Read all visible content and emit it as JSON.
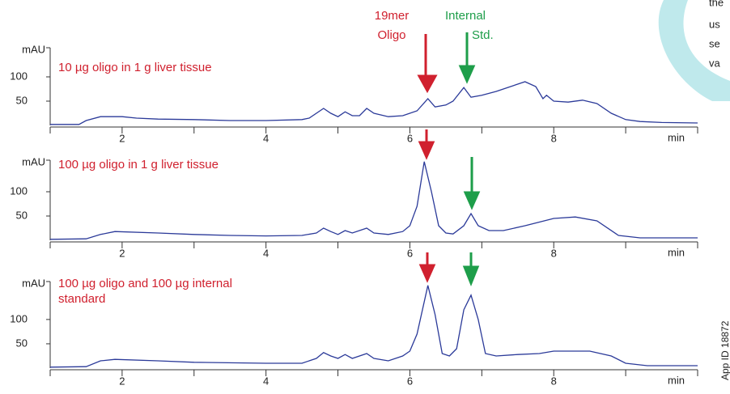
{
  "chart_data": [
    {
      "type": "line",
      "annotation": [
        "10 µg oligo in 1 g liver tissue"
      ],
      "ylabel": "mAU",
      "xlabel": "min",
      "color": "#2b3a99",
      "x": [
        1.0,
        1.4,
        1.5,
        1.7,
        2.0,
        2.2,
        2.5,
        3.0,
        3.5,
        4.0,
        4.5,
        4.6,
        4.8,
        4.9,
        5.0,
        5.1,
        5.2,
        5.3,
        5.4,
        5.5,
        5.7,
        5.9,
        6.0,
        6.1,
        6.25,
        6.35,
        6.5,
        6.6,
        6.75,
        6.85,
        7.0,
        7.2,
        7.4,
        7.6,
        7.75,
        7.85,
        7.9,
        8.0,
        8.2,
        8.4,
        8.6,
        8.8,
        9.0,
        9.2,
        9.5,
        10.0
      ],
      "values": [
        2,
        2,
        10,
        18,
        18,
        15,
        13,
        12,
        10,
        10,
        12,
        15,
        35,
        25,
        18,
        28,
        20,
        20,
        35,
        25,
        18,
        20,
        25,
        30,
        55,
        38,
        42,
        50,
        78,
        58,
        62,
        70,
        80,
        90,
        80,
        55,
        62,
        50,
        48,
        52,
        45,
        25,
        12,
        8,
        6,
        5
      ],
      "xlim": [
        1,
        10
      ],
      "xticks": [
        2,
        4,
        6,
        8
      ],
      "xminorticks": [
        3,
        5,
        7,
        9
      ],
      "ylim": [
        0,
        160
      ],
      "yticks": [
        50,
        100
      ]
    },
    {
      "type": "line",
      "annotation": [
        "100 µg oligo in 1 g liver tissue"
      ],
      "ylabel": "mAU",
      "xlabel": "min",
      "color": "#2b3a99",
      "x": [
        1.0,
        1.5,
        1.7,
        1.9,
        2.5,
        3.0,
        3.5,
        4.0,
        4.5,
        4.7,
        4.8,
        4.9,
        5.0,
        5.1,
        5.2,
        5.4,
        5.5,
        5.7,
        5.9,
        6.0,
        6.1,
        6.2,
        6.3,
        6.4,
        6.5,
        6.6,
        6.75,
        6.85,
        6.95,
        7.1,
        7.3,
        7.6,
        8.0,
        8.3,
        8.6,
        8.9,
        9.2,
        10.0
      ],
      "values": [
        2,
        3,
        12,
        18,
        15,
        12,
        10,
        9,
        10,
        15,
        25,
        18,
        12,
        20,
        15,
        25,
        15,
        12,
        18,
        30,
        70,
        162,
        100,
        30,
        15,
        13,
        30,
        55,
        30,
        20,
        20,
        30,
        45,
        48,
        40,
        10,
        5,
        5
      ],
      "xlim": [
        1,
        10
      ],
      "xticks": [
        2,
        4,
        6,
        8
      ],
      "xminorticks": [
        3,
        5,
        7,
        9
      ],
      "ylim": [
        0,
        165
      ],
      "yticks": [
        50,
        100
      ]
    },
    {
      "type": "line",
      "annotation": [
        "100 µg oligo and 100 µg internal",
        "standard"
      ],
      "ylabel": "mAU",
      "xlabel": "min",
      "color": "#2b3a99",
      "x": [
        1.0,
        1.5,
        1.7,
        1.9,
        2.5,
        3.0,
        4.0,
        4.5,
        4.7,
        4.8,
        4.9,
        5.0,
        5.1,
        5.2,
        5.4,
        5.5,
        5.7,
        5.9,
        6.0,
        6.1,
        6.25,
        6.35,
        6.45,
        6.55,
        6.65,
        6.75,
        6.85,
        6.95,
        7.05,
        7.2,
        7.5,
        7.8,
        8.0,
        8.5,
        8.8,
        9.0,
        9.3,
        10.0
      ],
      "values": [
        2,
        3,
        15,
        18,
        15,
        12,
        10,
        10,
        20,
        32,
        25,
        20,
        28,
        20,
        30,
        20,
        15,
        25,
        35,
        70,
        170,
        110,
        30,
        25,
        40,
        120,
        150,
        100,
        30,
        25,
        28,
        30,
        35,
        35,
        25,
        10,
        5,
        5
      ],
      "xlim": [
        1,
        10
      ],
      "xticks": [
        2,
        4,
        6,
        8
      ],
      "xminorticks": [
        3,
        5,
        7,
        9
      ],
      "ylim": [
        0,
        178
      ],
      "yticks": [
        50,
        100
      ]
    }
  ],
  "peak_labels": {
    "oligo": [
      "19mer",
      "Oligo"
    ],
    "internal": [
      "Internal",
      "Std."
    ]
  },
  "side_text": [
    "the",
    "us",
    "se",
    "va"
  ],
  "app_id": "App ID 18872"
}
